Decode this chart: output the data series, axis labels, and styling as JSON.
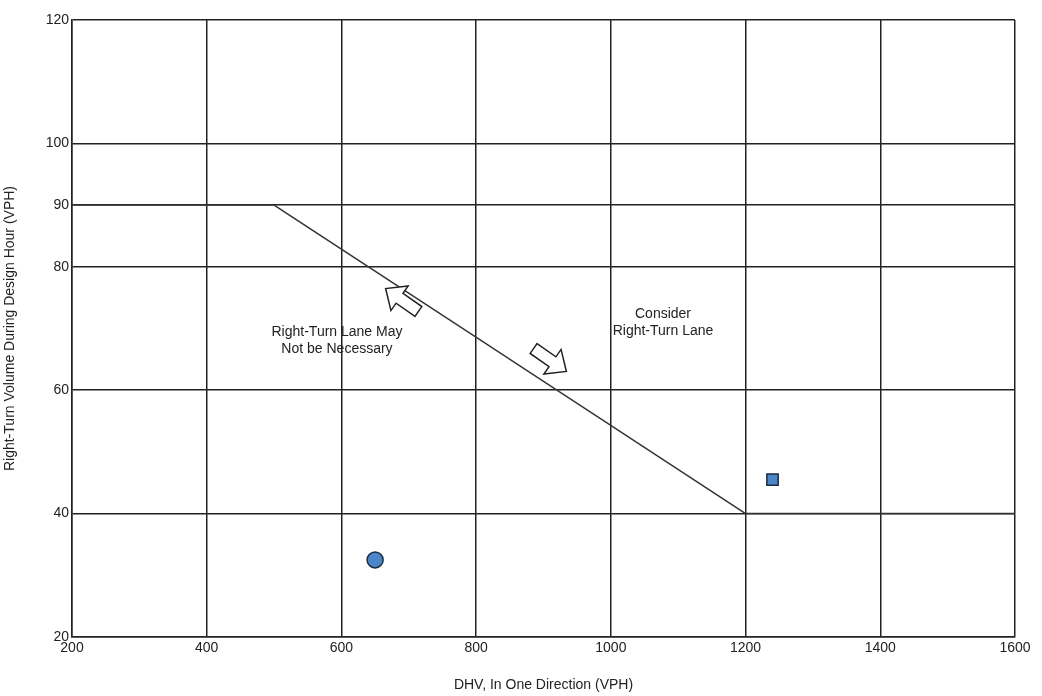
{
  "chart_data": {
    "type": "line",
    "xlabel": "DHV, In One Direction (VPH)",
    "ylabel": "Right-Turn Volume During Design Hour (VPH)",
    "xlim": [
      200,
      1600
    ],
    "xticks": [
      200,
      400,
      600,
      800,
      1000,
      1200,
      1400,
      1600
    ],
    "ylim": [
      20,
      120
    ],
    "yticks": [
      20,
      40,
      60,
      80,
      90,
      100,
      120
    ],
    "grid": true,
    "legend": false,
    "series": [
      {
        "color": "#333333",
        "x": [
          200,
          500,
          1200,
          1600
        ],
        "values": [
          90,
          90,
          40,
          40
        ],
        "marker": "none"
      },
      {
        "type": "scatter",
        "color": "#4a86c8",
        "x": [
          650
        ],
        "values": [
          32.5
        ],
        "marker": "circle"
      },
      {
        "type": "scatter",
        "color": "#4a86c8",
        "x": [
          1240
        ],
        "values": [
          45.5
        ],
        "marker": "square"
      }
    ],
    "annotations": [
      "Right-Turn Lane May\nNot be Necessary",
      "Consider\nRight-Turn Lane"
    ]
  }
}
